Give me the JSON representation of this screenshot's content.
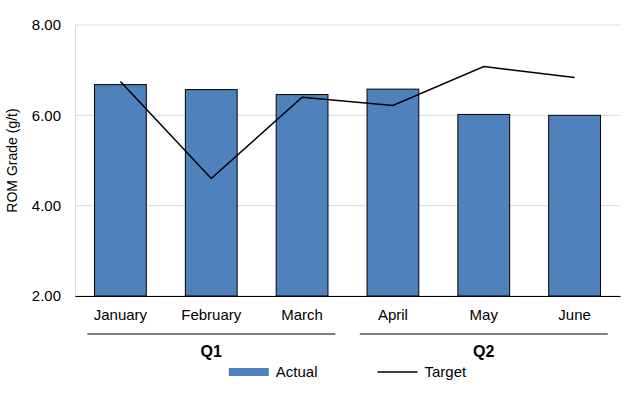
{
  "chart_data": {
    "type": "bar",
    "y_label": "ROM Grade (g/t)",
    "categories": [
      "January",
      "February",
      "March",
      "April",
      "May",
      "June"
    ],
    "quarters": [
      "Q1",
      "Q1",
      "Q1",
      "Q2",
      "Q2",
      "Q2"
    ],
    "series": [
      {
        "name": "Actual",
        "type": "bar",
        "color": "#4f81bd",
        "values": [
          6.68,
          6.57,
          6.46,
          6.58,
          6.02,
          6.0
        ]
      },
      {
        "name": "Target",
        "type": "line",
        "color": "#000000",
        "values": [
          6.75,
          4.6,
          6.4,
          6.22,
          7.08,
          6.84
        ]
      }
    ],
    "ylim": [
      2,
      8
    ],
    "yticks": [
      {
        "value": 2,
        "label": "2.00"
      },
      {
        "value": 4,
        "label": "4.00"
      },
      {
        "value": 6,
        "label": "6.00"
      },
      {
        "value": 8,
        "label": "8.00"
      }
    ],
    "grid": true,
    "legend": "bottom"
  }
}
